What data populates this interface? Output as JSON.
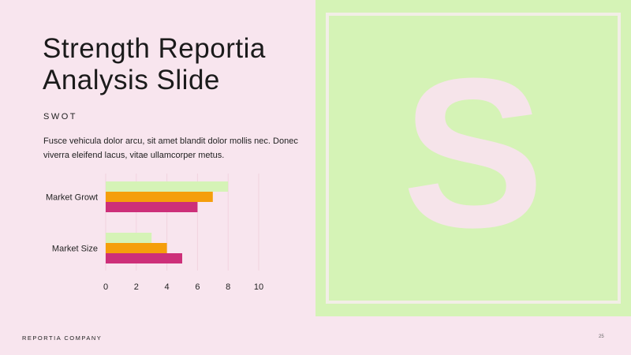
{
  "slide": {
    "title": "Strength Reportia Analysis Slide",
    "subtitle": "SWOT",
    "body": "Fusce vehicula dolor arcu, sit amet blandit dolor mollis nec. Donec viverra eleifend lacus, vitae ullamcorper metus.",
    "panel_letter": "S",
    "footer_company": "REPORTIA COMPANY",
    "page_number": "25"
  },
  "colors": {
    "background": "#f8e5ee",
    "panel": "#d5f3b6",
    "series_1": "#d5f3b6",
    "series_2": "#f59e0b",
    "series_3": "#cd2f79"
  },
  "chart_data": {
    "type": "bar",
    "orientation": "horizontal",
    "categories": [
      "Market Growt",
      "Market Size"
    ],
    "series": [
      {
        "values": [
          8,
          3
        ]
      },
      {
        "values": [
          7,
          4
        ]
      },
      {
        "values": [
          6,
          5
        ]
      }
    ],
    "xlim": [
      0,
      10
    ],
    "xticks": [
      "0",
      "2",
      "4",
      "6",
      "8",
      "10"
    ],
    "grid": true,
    "legend": "none"
  }
}
